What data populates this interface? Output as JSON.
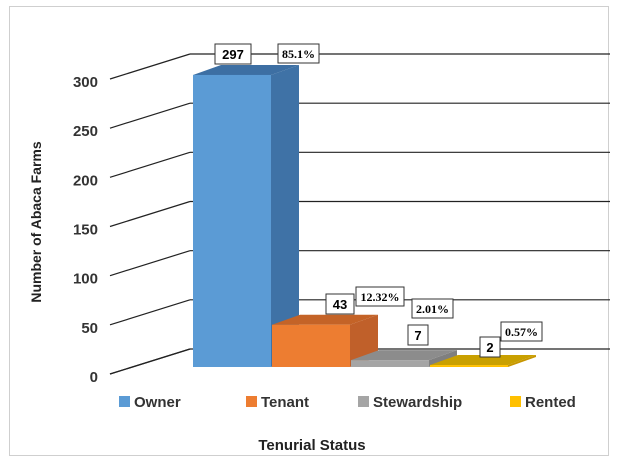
{
  "chart_data": {
    "type": "bar",
    "style": "3d-column",
    "categories": [
      "Owner",
      "Tenant",
      "Stewardship",
      "Rented"
    ],
    "values": [
      297,
      43,
      7,
      2
    ],
    "percent_labels": [
      "85.1%",
      "12.32%",
      "2.01%",
      "0.57%"
    ],
    "title": "",
    "xlabel": "Tenurial Status",
    "ylabel": "Number of Abaca Farms",
    "ylim": [
      0,
      300
    ],
    "yticks": [
      0,
      50,
      100,
      150,
      200,
      250,
      300
    ],
    "grid": true,
    "legend_position": "bottom",
    "colors": {
      "Owner": {
        "front": "#5b9bd5",
        "side": "#3f72a6",
        "top": "#3d6fa3"
      },
      "Tenant": {
        "front": "#ed7d31",
        "side": "#c0602a",
        "top": "#c46327"
      },
      "Stewardship": {
        "front": "#a5a5a5",
        "side": "#7f7f7f",
        "top": "#8c8c8c"
      },
      "Rented": {
        "front": "#ffc000",
        "side": "#c79600",
        "top": "#c9a000"
      }
    }
  }
}
